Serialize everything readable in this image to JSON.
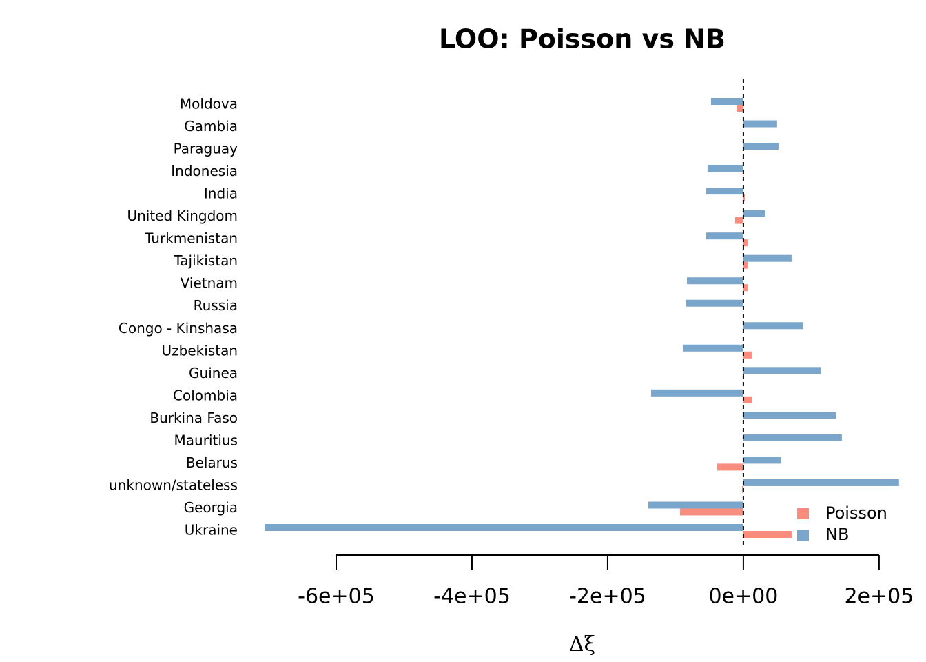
{
  "chart_data": {
    "type": "barh",
    "title": "LOO: Poisson vs NB",
    "x_label": "Δξ",
    "categories": [
      "Moldova",
      "Gambia",
      "Paraguay",
      "Indonesia",
      "India",
      "United Kingdom",
      "Turkmenistan",
      "Tajikistan",
      "Vietnam",
      "Russia",
      "Congo - Kinshasa",
      "Uzbekistan",
      "Guinea",
      "Colombia",
      "Burkina Faso",
      "Mauritius",
      "Belarus",
      "unknown/stateless",
      "Georgia",
      "Ukraine"
    ],
    "series": [
      {
        "name": "Poisson",
        "color": "#fa8c7d",
        "values": [
          -9100,
          0,
          0,
          -1000,
          3000,
          -12200,
          6100,
          6100,
          6100,
          0,
          0,
          12200,
          0,
          13200,
          0,
          0,
          -38600,
          -2000,
          -93400,
          71100
        ]
      },
      {
        "name": "NB",
        "color": "#7ba6cb",
        "values": [
          -47700,
          49700,
          51800,
          -52800,
          -54800,
          32500,
          -54800,
          71100,
          -83200,
          -84300,
          88300,
          -89300,
          114700,
          -136000,
          137100,
          145200,
          55800,
          229400,
          -140100,
          -705600
        ]
      }
    ],
    "xlim": [
      -733000,
      258000
    ],
    "xticks": [
      {
        "value": -600000,
        "label": "-6e+05"
      },
      {
        "value": -400000,
        "label": "-4e+05"
      },
      {
        "value": -200000,
        "label": "-2e+05"
      },
      {
        "value": 0,
        "label": "0e+00"
      },
      {
        "value": 200000,
        "label": "2e+05"
      }
    ],
    "vline": 0,
    "legend": "bottom-right"
  }
}
